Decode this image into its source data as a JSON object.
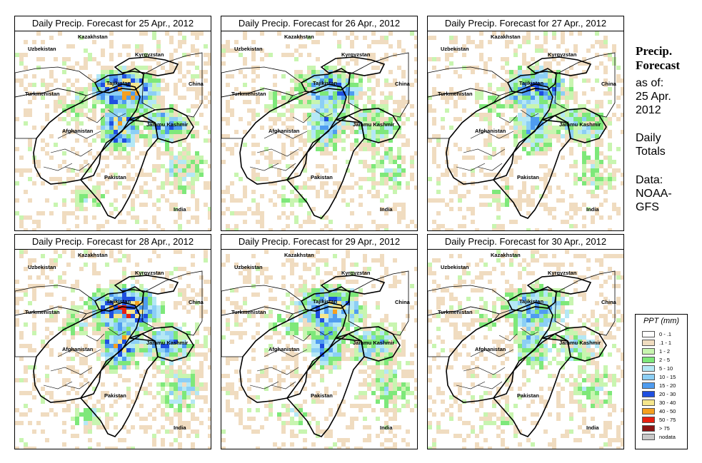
{
  "panels": [
    {
      "title": "Daily Precip. Forecast for  25 Apr., 2012",
      "seed": 11,
      "wetness": 1.0
    },
    {
      "title": "Daily Precip. Forecast for  26 Apr., 2012",
      "seed": 23,
      "wetness": 0.75
    },
    {
      "title": "Daily Precip. Forecast for  27 Apr., 2012",
      "seed": 37,
      "wetness": 0.8
    },
    {
      "title": "Daily Precip. Forecast for  28 Apr., 2012",
      "seed": 41,
      "wetness": 1.05
    },
    {
      "title": "Daily Precip. Forecast for  29 Apr., 2012",
      "seed": 53,
      "wetness": 0.9
    },
    {
      "title": "Daily Precip. Forecast for  30 Apr., 2012",
      "seed": 67,
      "wetness": 0.7
    }
  ],
  "map_labels": {
    "kazakhstan": "Kazakhstan",
    "uzbekistan": "Uzbekistan",
    "kyrgyzstan": "Kyrgyzstan",
    "tajikistan": "Tajikistan",
    "turkmenistan": "Turkmenistan",
    "china": "China",
    "afghanistan": "Afghanistan",
    "jammu_kashmir": "Jammu Kashmir",
    "pakistan": "Pakistan",
    "india": "India"
  },
  "side": {
    "title_line1": "Precip.",
    "title_line2": "Forecast",
    "asof_line1": "as of:",
    "asof_line2": "25 Apr.",
    "asof_line3": "2012",
    "totals_line1": "Daily",
    "totals_line2": "Totals",
    "data_line1": "Data:",
    "data_line2": "NOAA-",
    "data_line3": "GFS"
  },
  "legend": {
    "title": "PPT (mm)",
    "items": [
      {
        "label": "0 - .1",
        "color": "#ffffff"
      },
      {
        "label": ".1 - 1",
        "color": "#f0dcc0"
      },
      {
        "label": "1 - 2",
        "color": "#c8f5b0"
      },
      {
        "label": "2 - 5",
        "color": "#7ee87a"
      },
      {
        "label": "5 - 10",
        "color": "#b4e8f5"
      },
      {
        "label": "10 - 15",
        "color": "#8ccff5"
      },
      {
        "label": "15 - 20",
        "color": "#4f9cf0"
      },
      {
        "label": "20 - 30",
        "color": "#1f4fe0"
      },
      {
        "label": "30 - 40",
        "color": "#f5e68c"
      },
      {
        "label": "40 - 50",
        "color": "#f5a020"
      },
      {
        "label": "50 - 75",
        "color": "#e82010"
      },
      {
        "label": "> 75",
        "color": "#8b1414"
      },
      {
        "label": "nodata",
        "color": "#c8c8c8"
      }
    ]
  }
}
